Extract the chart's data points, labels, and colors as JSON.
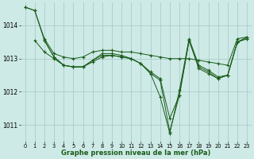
{
  "background_color": "#ceeae6",
  "grid_color": "#aacccc",
  "line_color": "#1a5c1a",
  "marker_color": "#1a5c1a",
  "xlabel": "Graphe pression niveau de la mer (hPa)",
  "xlim": [
    -0.5,
    23.5
  ],
  "ylim": [
    1010.5,
    1014.7
  ],
  "yticks": [
    1011,
    1012,
    1013,
    1014
  ],
  "xticks": [
    0,
    1,
    2,
    3,
    4,
    5,
    6,
    7,
    8,
    9,
    10,
    11,
    12,
    13,
    14,
    15,
    16,
    17,
    18,
    19,
    20,
    21,
    22,
    23
  ],
  "series": [
    {
      "x": [
        0,
        1,
        2,
        3,
        4,
        5,
        6,
        7,
        8,
        9,
        10,
        11,
        12,
        13,
        14,
        15,
        16,
        17,
        18,
        19,
        20,
        21,
        22,
        23
      ],
      "y": [
        1014.55,
        1014.45,
        1013.6,
        1013.15,
        1013.05,
        1013.0,
        1013.05,
        1013.2,
        1013.25,
        1013.25,
        1013.2,
        1013.2,
        1013.15,
        1013.1,
        1013.05,
        1013.0,
        1013.0,
        1013.0,
        1012.95,
        1012.9,
        1012.85,
        1012.8,
        1013.6,
        1013.65
      ]
    },
    {
      "x": [
        2,
        3,
        4,
        5,
        6,
        7,
        8,
        9,
        10,
        11,
        12,
        13,
        14,
        15,
        16,
        17,
        18,
        19,
        20,
        21,
        22,
        23
      ],
      "y": [
        1013.55,
        1013.05,
        1012.8,
        1012.75,
        1012.75,
        1012.95,
        1013.1,
        1013.1,
        1013.05,
        1013.0,
        1012.85,
        1012.6,
        1012.4,
        1011.2,
        1011.9,
        1013.55,
        1012.75,
        1012.6,
        1012.4,
        1012.5,
        1013.5,
        1013.6
      ]
    },
    {
      "x": [
        0,
        1,
        2,
        3,
        4,
        5,
        6,
        7,
        8,
        9,
        10,
        11,
        12,
        13,
        14,
        15,
        16,
        17,
        18,
        19,
        20,
        21,
        22,
        23
      ],
      "y": [
        1014.55,
        1014.45,
        1013.55,
        1013.05,
        1012.8,
        1012.75,
        1012.75,
        1012.95,
        1013.15,
        1013.15,
        1013.1,
        1013.0,
        1012.85,
        1012.55,
        1011.85,
        1010.75,
        1012.05,
        1013.6,
        1012.8,
        1012.65,
        1012.45,
        1012.5,
        1013.5,
        1013.65
      ]
    },
    {
      "x": [
        1,
        2,
        3,
        4,
        5,
        6,
        7,
        8,
        9,
        10,
        11,
        12,
        13,
        14,
        15,
        16,
        17,
        18,
        19,
        20,
        21,
        22,
        23
      ],
      "y": [
        1013.55,
        1013.2,
        1013.0,
        1012.8,
        1012.75,
        1012.75,
        1012.9,
        1013.05,
        1013.1,
        1013.05,
        1013.0,
        1012.85,
        1012.55,
        1012.35,
        1010.8,
        1011.9,
        1013.55,
        1012.7,
        1012.55,
        1012.4,
        1012.5,
        1013.5,
        1013.6
      ]
    }
  ]
}
